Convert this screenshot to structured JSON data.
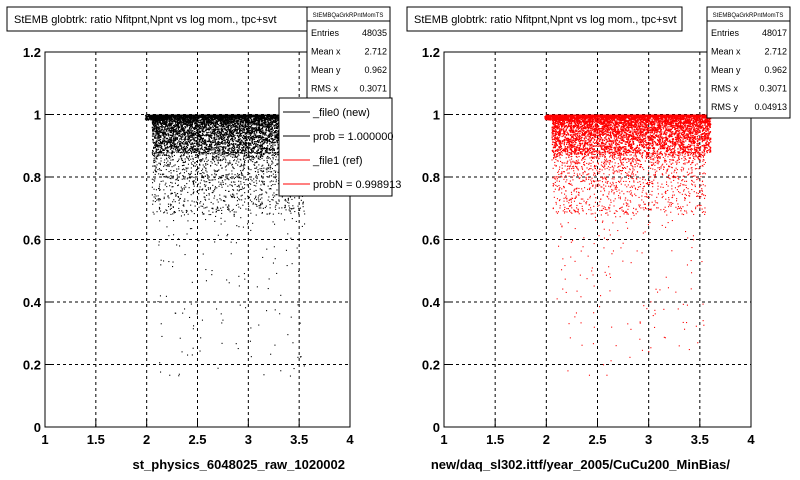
{
  "chart_data": [
    {
      "type": "scatter",
      "title": "StEMB globtrk: ratio Nfitpnt,Npnt vs log mom., tpc+svt",
      "xlabel": "st_physics_6048025_raw_1020002",
      "ylabel": "",
      "xlim": [
        1,
        4
      ],
      "ylim": [
        0,
        1.2
      ],
      "x_ticks": [
        "1",
        "1.5",
        "2",
        "2.5",
        "3",
        "3.5",
        "4"
      ],
      "y_ticks": [
        "0",
        "0.2",
        "0.4",
        "0.6",
        "0.8",
        "1",
        "1.2"
      ],
      "grid": true,
      "marker_color": "#000000",
      "dense_band": {
        "x": [
          2.0,
          3.6
        ],
        "y": [
          0.88,
          1.0
        ]
      },
      "stats": {
        "name": "StEMBQaGrkRPntMomTS",
        "rows": [
          {
            "label": "Entries",
            "value": "48035"
          },
          {
            "label": "Mean x",
            "value": "2.712"
          },
          {
            "label": "Mean y",
            "value": "0.962"
          },
          {
            "label": "RMS x",
            "value": "0.3071"
          }
        ]
      },
      "legend": {
        "placement": "top-right",
        "entries": [
          {
            "label": "_file0 (new)",
            "color": "#000000"
          },
          {
            "label": "prob = 1.000000",
            "color": "#000000"
          },
          {
            "label": "_file1 (ref)",
            "color": "#ff0000"
          },
          {
            "label": "probN = 0.998913",
            "color": "#ff0000"
          }
        ]
      }
    },
    {
      "type": "scatter",
      "title": "StEMB globtrk: ratio Nfitpnt,Npnt vs log mom., tpc+svt",
      "xlabel": "new/daq_sl302.ittf/year_2005/CuCu200_MinBias/",
      "ylabel": "",
      "xlim": [
        1,
        4
      ],
      "ylim": [
        0,
        1.2
      ],
      "x_ticks": [
        "1",
        "1.5",
        "2",
        "2.5",
        "3",
        "3.5",
        "4"
      ],
      "y_ticks": [
        "0",
        "0.2",
        "0.4",
        "0.6",
        "0.8",
        "1",
        "1.2"
      ],
      "grid": true,
      "marker_color": "#ff0000",
      "dense_band": {
        "x": [
          2.0,
          3.6
        ],
        "y": [
          0.88,
          1.0
        ]
      },
      "stats": {
        "name": "StEMBQaGrkRPntMomTS",
        "rows": [
          {
            "label": "Entries",
            "value": "48017"
          },
          {
            "label": "Mean x",
            "value": "2.712"
          },
          {
            "label": "Mean y",
            "value": "0.962"
          },
          {
            "label": "RMS x",
            "value": "0.3071"
          },
          {
            "label": "RMS y",
            "value": "0.04913"
          }
        ]
      }
    }
  ]
}
